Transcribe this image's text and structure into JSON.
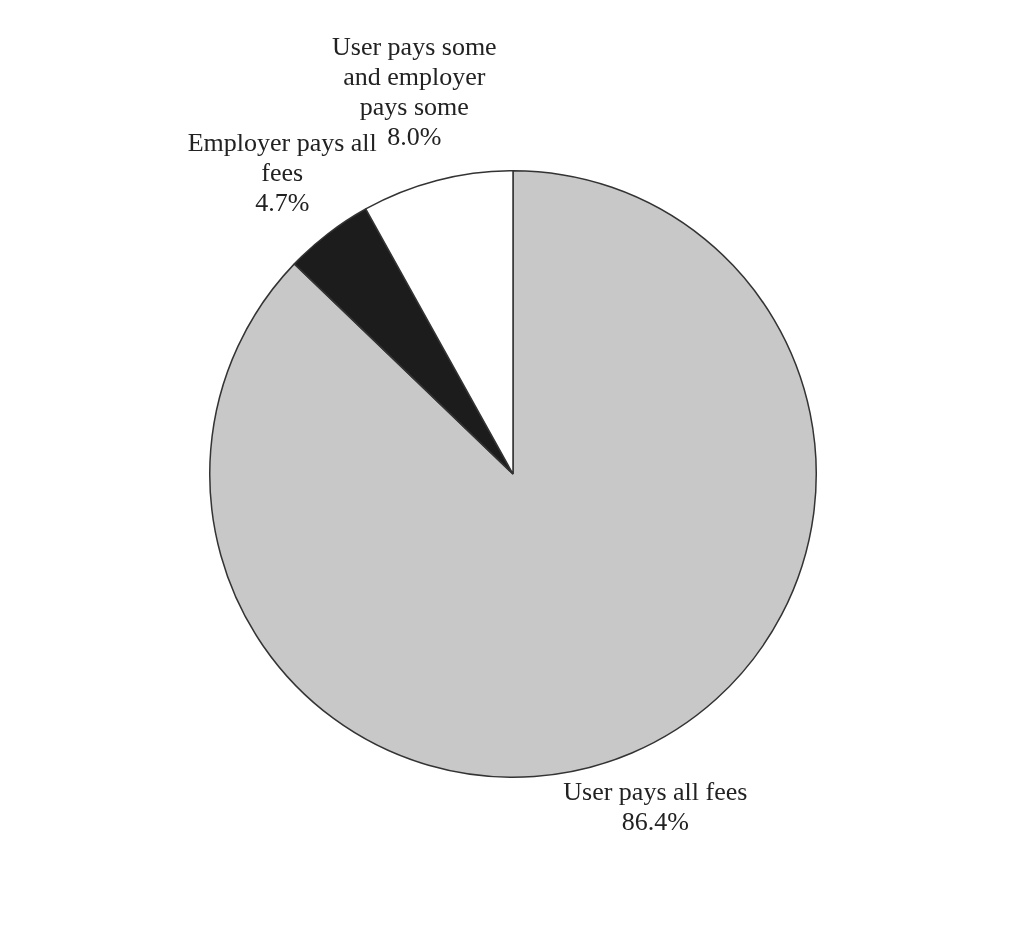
{
  "chart_data": {
    "type": "pie",
    "categories": [
      "User pays all fees",
      "Employer pays all fees",
      "User pays some and employer pays some"
    ],
    "values": [
      86.4,
      4.7,
      8.0
    ],
    "colors": [
      "#c8c8c8",
      "#1c1c1c",
      "#ffffff"
    ],
    "value_labels": [
      "86.4%",
      "4.7%",
      "8.0%"
    ],
    "legend": false
  }
}
